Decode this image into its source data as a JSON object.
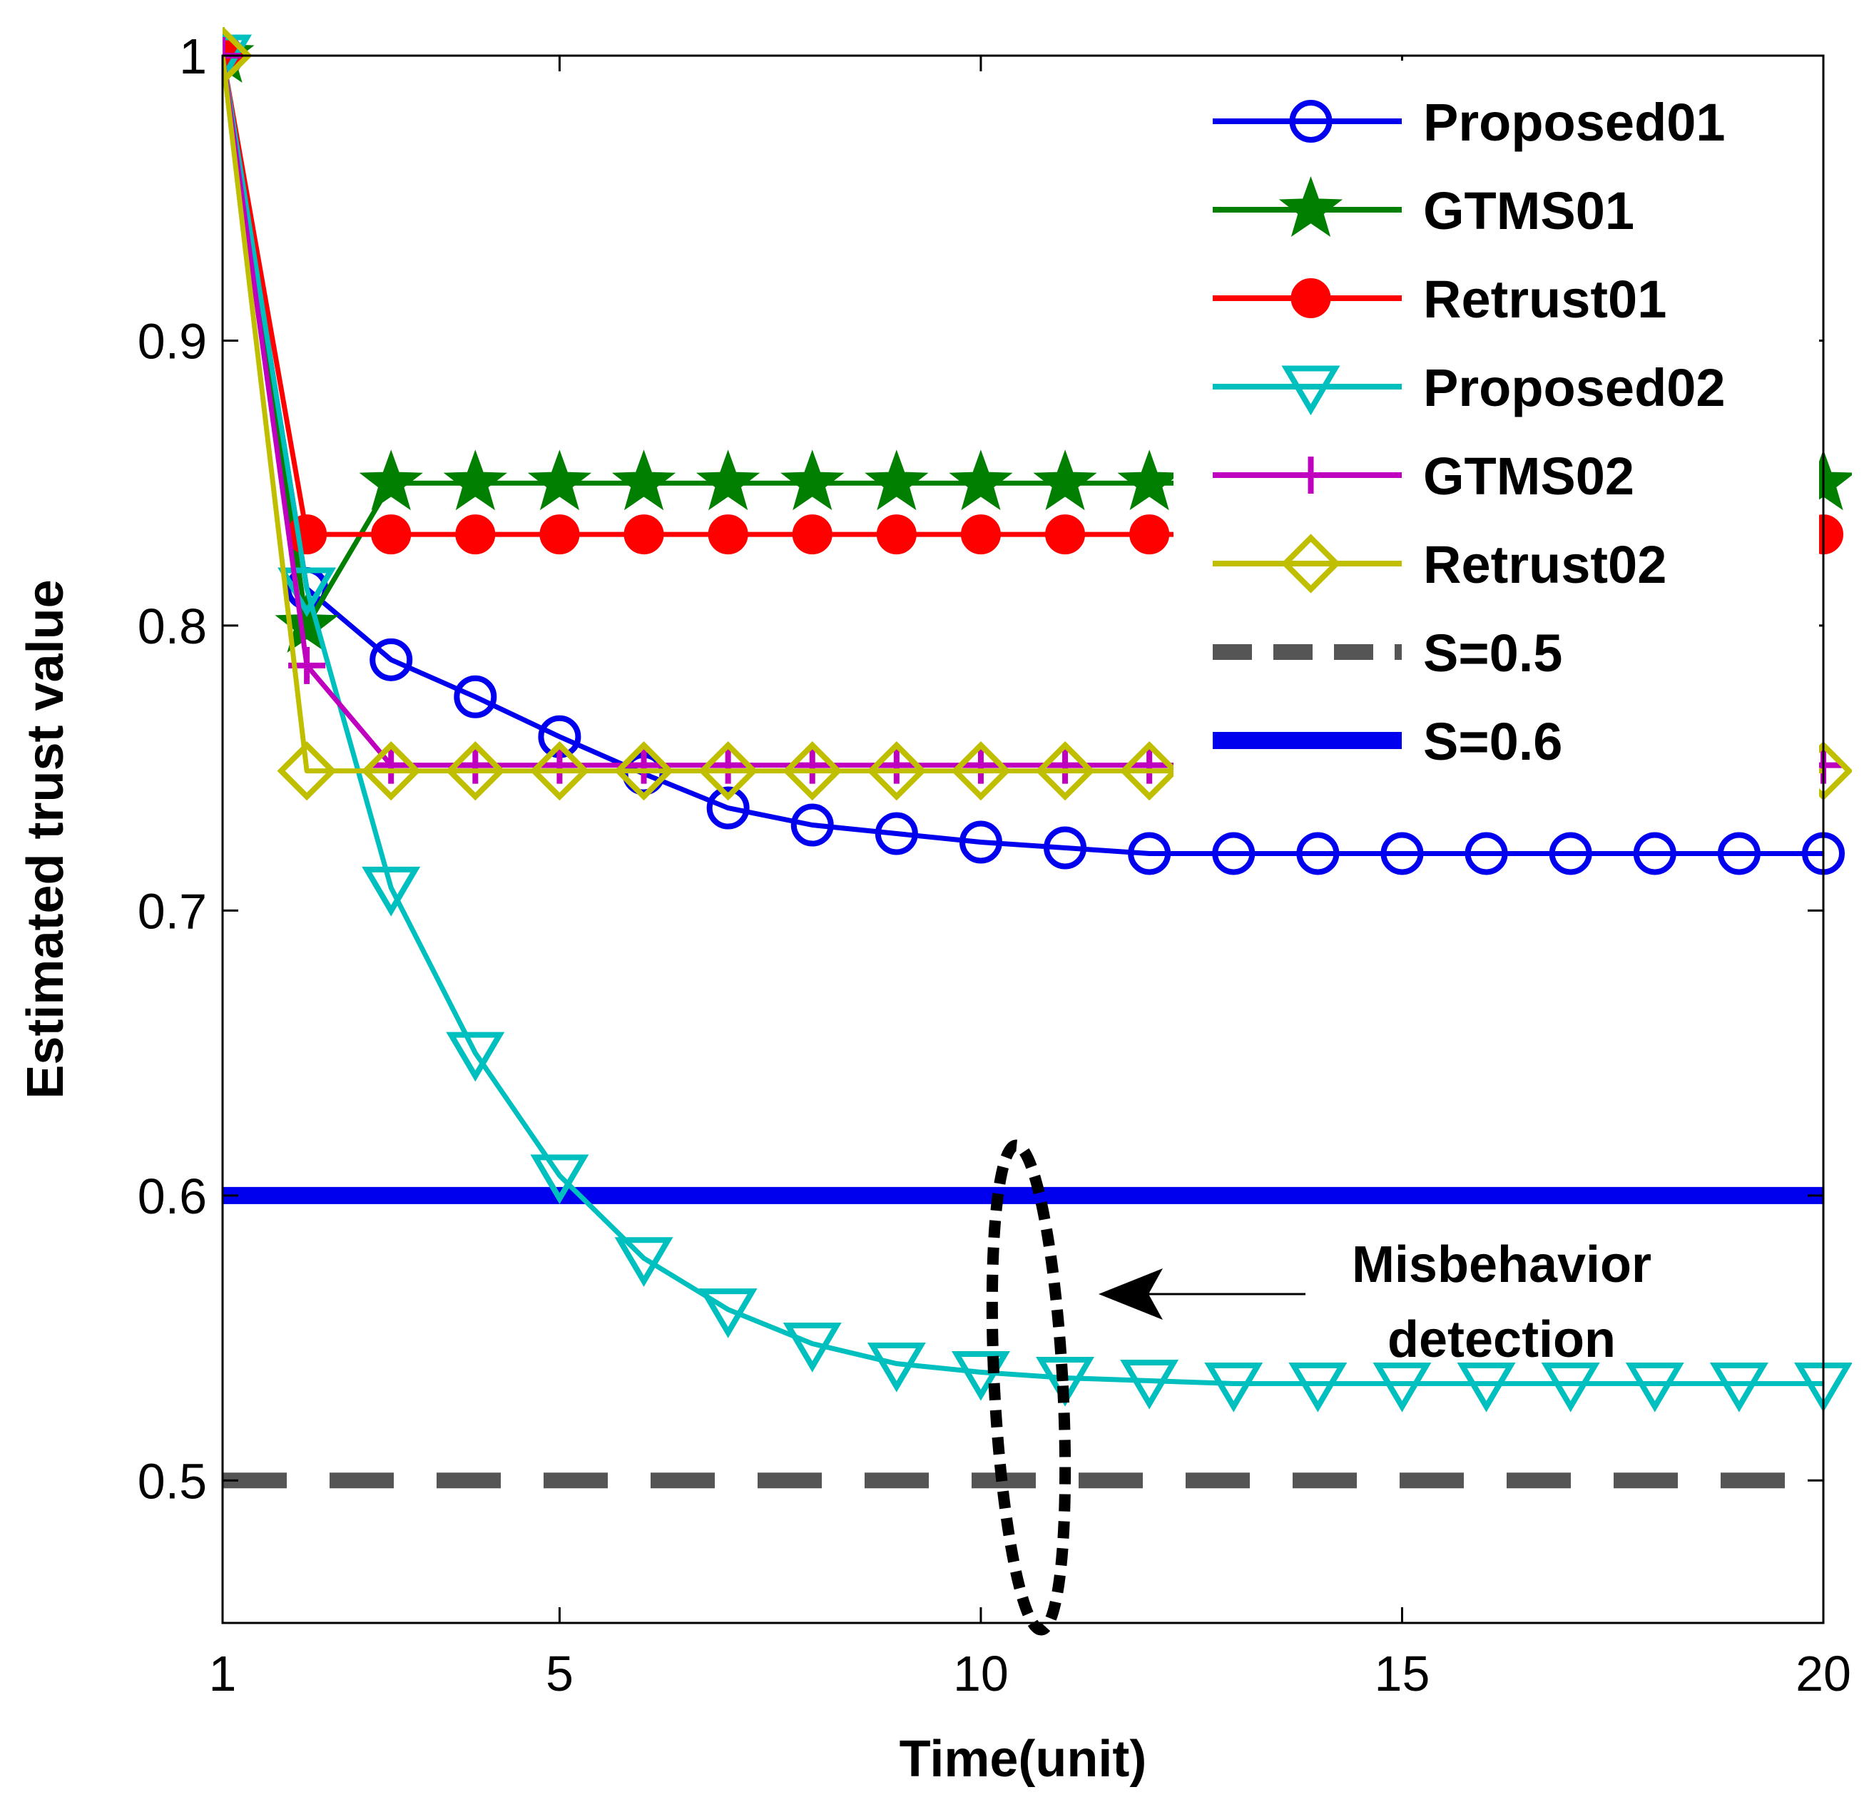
{
  "chart_data": {
    "type": "line",
    "title": "",
    "xlabel": "Time(unit)",
    "ylabel": "Estimated trust value",
    "xlim": [
      1,
      20
    ],
    "ylim": [
      0.45,
      1.0
    ],
    "xticks": [
      1,
      5,
      10,
      15,
      20
    ],
    "yticks": [
      0.5,
      0.6,
      0.7,
      0.8,
      0.9,
      1.0
    ],
    "ytick_labels": [
      "0.5",
      "0.6",
      "0.7",
      "0.8",
      "0.9",
      "1"
    ],
    "grid": false,
    "legend_position": "top-right",
    "x": [
      1,
      2,
      3,
      4,
      5,
      6,
      7,
      8,
      9,
      10,
      11,
      12,
      13,
      14,
      15,
      16,
      17,
      18,
      19,
      20
    ],
    "series": [
      {
        "name": "Proposed01",
        "color": "#0000ee",
        "marker": "circle-open",
        "values": [
          1.0,
          0.813,
          0.788,
          0.775,
          0.761,
          0.748,
          0.736,
          0.73,
          0.727,
          0.724,
          0.722,
          0.72,
          0.72,
          0.72,
          0.72,
          0.72,
          0.72,
          0.72,
          0.72,
          0.72
        ]
      },
      {
        "name": "GTMS01",
        "color": "#007f00",
        "marker": "star",
        "values": [
          1.0,
          0.8,
          0.85,
          0.85,
          0.85,
          0.85,
          0.85,
          0.85,
          0.85,
          0.85,
          0.85,
          0.85,
          0.85,
          0.85,
          0.85,
          0.85,
          0.85,
          0.85,
          0.85,
          0.85
        ]
      },
      {
        "name": "Retrust01",
        "color": "#ff0000",
        "marker": "circle-filled",
        "values": [
          1.0,
          0.832,
          0.832,
          0.832,
          0.832,
          0.832,
          0.832,
          0.832,
          0.832,
          0.832,
          0.832,
          0.832,
          0.832,
          0.832,
          0.832,
          0.832,
          0.832,
          0.832,
          0.832,
          0.832
        ]
      },
      {
        "name": "Proposed02",
        "color": "#00bfbf",
        "marker": "triangle-down-open",
        "values": [
          1.0,
          0.813,
          0.708,
          0.65,
          0.607,
          0.578,
          0.56,
          0.548,
          0.541,
          0.538,
          0.536,
          0.535,
          0.534,
          0.534,
          0.534,
          0.534,
          0.534,
          0.534,
          0.534,
          0.534
        ]
      },
      {
        "name": "GTMS02",
        "color": "#bf00bf",
        "marker": "plus",
        "values": [
          1.0,
          0.786,
          0.751,
          0.751,
          0.751,
          0.751,
          0.751,
          0.751,
          0.751,
          0.751,
          0.751,
          0.751,
          0.751,
          0.751,
          0.751,
          0.751,
          0.751,
          0.751,
          0.751,
          0.751
        ]
      },
      {
        "name": "Retrust02",
        "color": "#bfbf00",
        "marker": "diamond-open",
        "values": [
          1.0,
          0.749,
          0.749,
          0.749,
          0.749,
          0.749,
          0.749,
          0.749,
          0.749,
          0.749,
          0.749,
          0.749,
          0.749,
          0.749,
          0.749,
          0.749,
          0.749,
          0.749,
          0.749,
          0.749
        ]
      }
    ],
    "thresholds": [
      {
        "name": "S=0.5",
        "value": 0.5,
        "color": "#555555",
        "style": "dashed"
      },
      {
        "name": "S=0.6",
        "value": 0.6,
        "color": "#0000ee",
        "style": "solid"
      }
    ],
    "annotations": [
      {
        "text_lines": [
          "Misbehavior",
          "detection"
        ],
        "target_x": 10.6,
        "target_y": 0.535
      }
    ]
  }
}
